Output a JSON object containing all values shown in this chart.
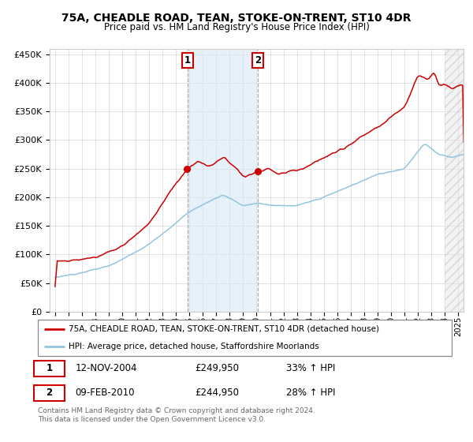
{
  "title": "75A, CHEADLE ROAD, TEAN, STOKE-ON-TRENT, ST10 4DR",
  "subtitle": "Price paid vs. HM Land Registry's House Price Index (HPI)",
  "legend_line1": "75A, CHEADLE ROAD, TEAN, STOKE-ON-TRENT, ST10 4DR (detached house)",
  "legend_line2": "HPI: Average price, detached house, Staffordshire Moorlands",
  "footer": "Contains HM Land Registry data © Crown copyright and database right 2024.\nThis data is licensed under the Open Government Licence v3.0.",
  "sale1_date": "12-NOV-2004",
  "sale1_price": "£249,950",
  "sale1_hpi": "33% ↑ HPI",
  "sale2_date": "09-FEB-2010",
  "sale2_price": "£244,950",
  "sale2_hpi": "28% ↑ HPI",
  "hpi_color": "#92c5de",
  "price_color": "#cc0000",
  "shading_color": "#d6e8f5",
  "ylim": [
    0,
    460000
  ],
  "yticks": [
    0,
    50000,
    100000,
    150000,
    200000,
    250000,
    300000,
    350000,
    400000,
    450000
  ],
  "sale1_x": 2004.87,
  "sale2_x": 2010.11,
  "hatch_start": 2024.0,
  "xlim_left": 1994.6,
  "xlim_right": 2025.4,
  "sale1_val": 249950,
  "sale2_val": 244950
}
